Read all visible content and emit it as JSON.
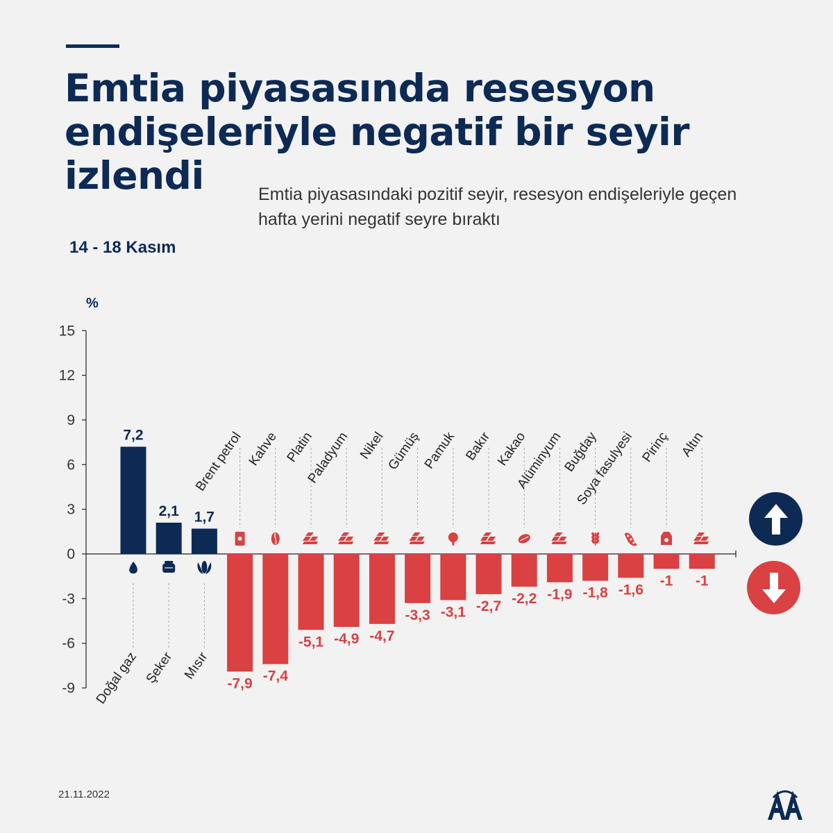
{
  "header": {
    "title": "Emtia piyasasında resesyon endişeleriyle negatif bir seyir izlendi",
    "subtitle": "Emtia piyasasındaki pozitif seyir, resesyon endişeleriyle geçen hafta yerini negatif seyre bıraktı",
    "period": "14 - 18 Kasım"
  },
  "footer": {
    "date": "21.11.2022",
    "logo_text": "AA"
  },
  "colors": {
    "positive": "#0d2a55",
    "negative": "#d94142",
    "title": "#0d2a55",
    "background": "#f2f2f2"
  },
  "icons": {
    "up_badge": "arrow-up-icon",
    "down_badge": "arrow-down-icon"
  },
  "chart_data": {
    "type": "bar",
    "title": "",
    "ylabel": "%",
    "xlabel": "",
    "ylim": [
      -9,
      15
    ],
    "yticks": [
      15,
      12,
      9,
      6,
      3,
      0,
      -3,
      -6,
      -9
    ],
    "grid": false,
    "categories": [
      "Doğal gaz",
      "Şeker",
      "Mısır",
      "Brent petrol",
      "Kahve",
      "Platin",
      "Paladyum",
      "Nikel",
      "Gümüş",
      "Pamuk",
      "Bakır",
      "Kakao",
      "Alüminyum",
      "Buğday",
      "Soya fasulyesi",
      "Pirinç",
      "Altın"
    ],
    "values": [
      7.2,
      2.1,
      1.7,
      -7.9,
      -7.4,
      -5.1,
      -4.9,
      -4.7,
      -3.3,
      -3.1,
      -2.7,
      -2.2,
      -1.9,
      -1.8,
      -1.6,
      -1,
      -1
    ],
    "value_labels": [
      "7,2",
      "2,1",
      "1,7",
      "-7,9",
      "-7,4",
      "-5,1",
      "-4,9",
      "-4,7",
      "-3,3",
      "-3,1",
      "-2,7",
      "-2,2",
      "-1,9",
      "-1,8",
      "-1,6",
      "-1",
      "-1"
    ],
    "category_icons": [
      "gas-flame-icon",
      "sugar-sack-icon",
      "corn-icon",
      "oil-barrel-icon",
      "coffee-bean-icon",
      "metal-bars-icon",
      "metal-bars-icon",
      "metal-bars-icon",
      "metal-bars-icon",
      "cotton-icon",
      "metal-bars-icon",
      "cocoa-icon",
      "metal-bars-icon",
      "wheat-icon",
      "soybean-icon",
      "rice-sack-icon",
      "metal-bars-icon"
    ]
  }
}
